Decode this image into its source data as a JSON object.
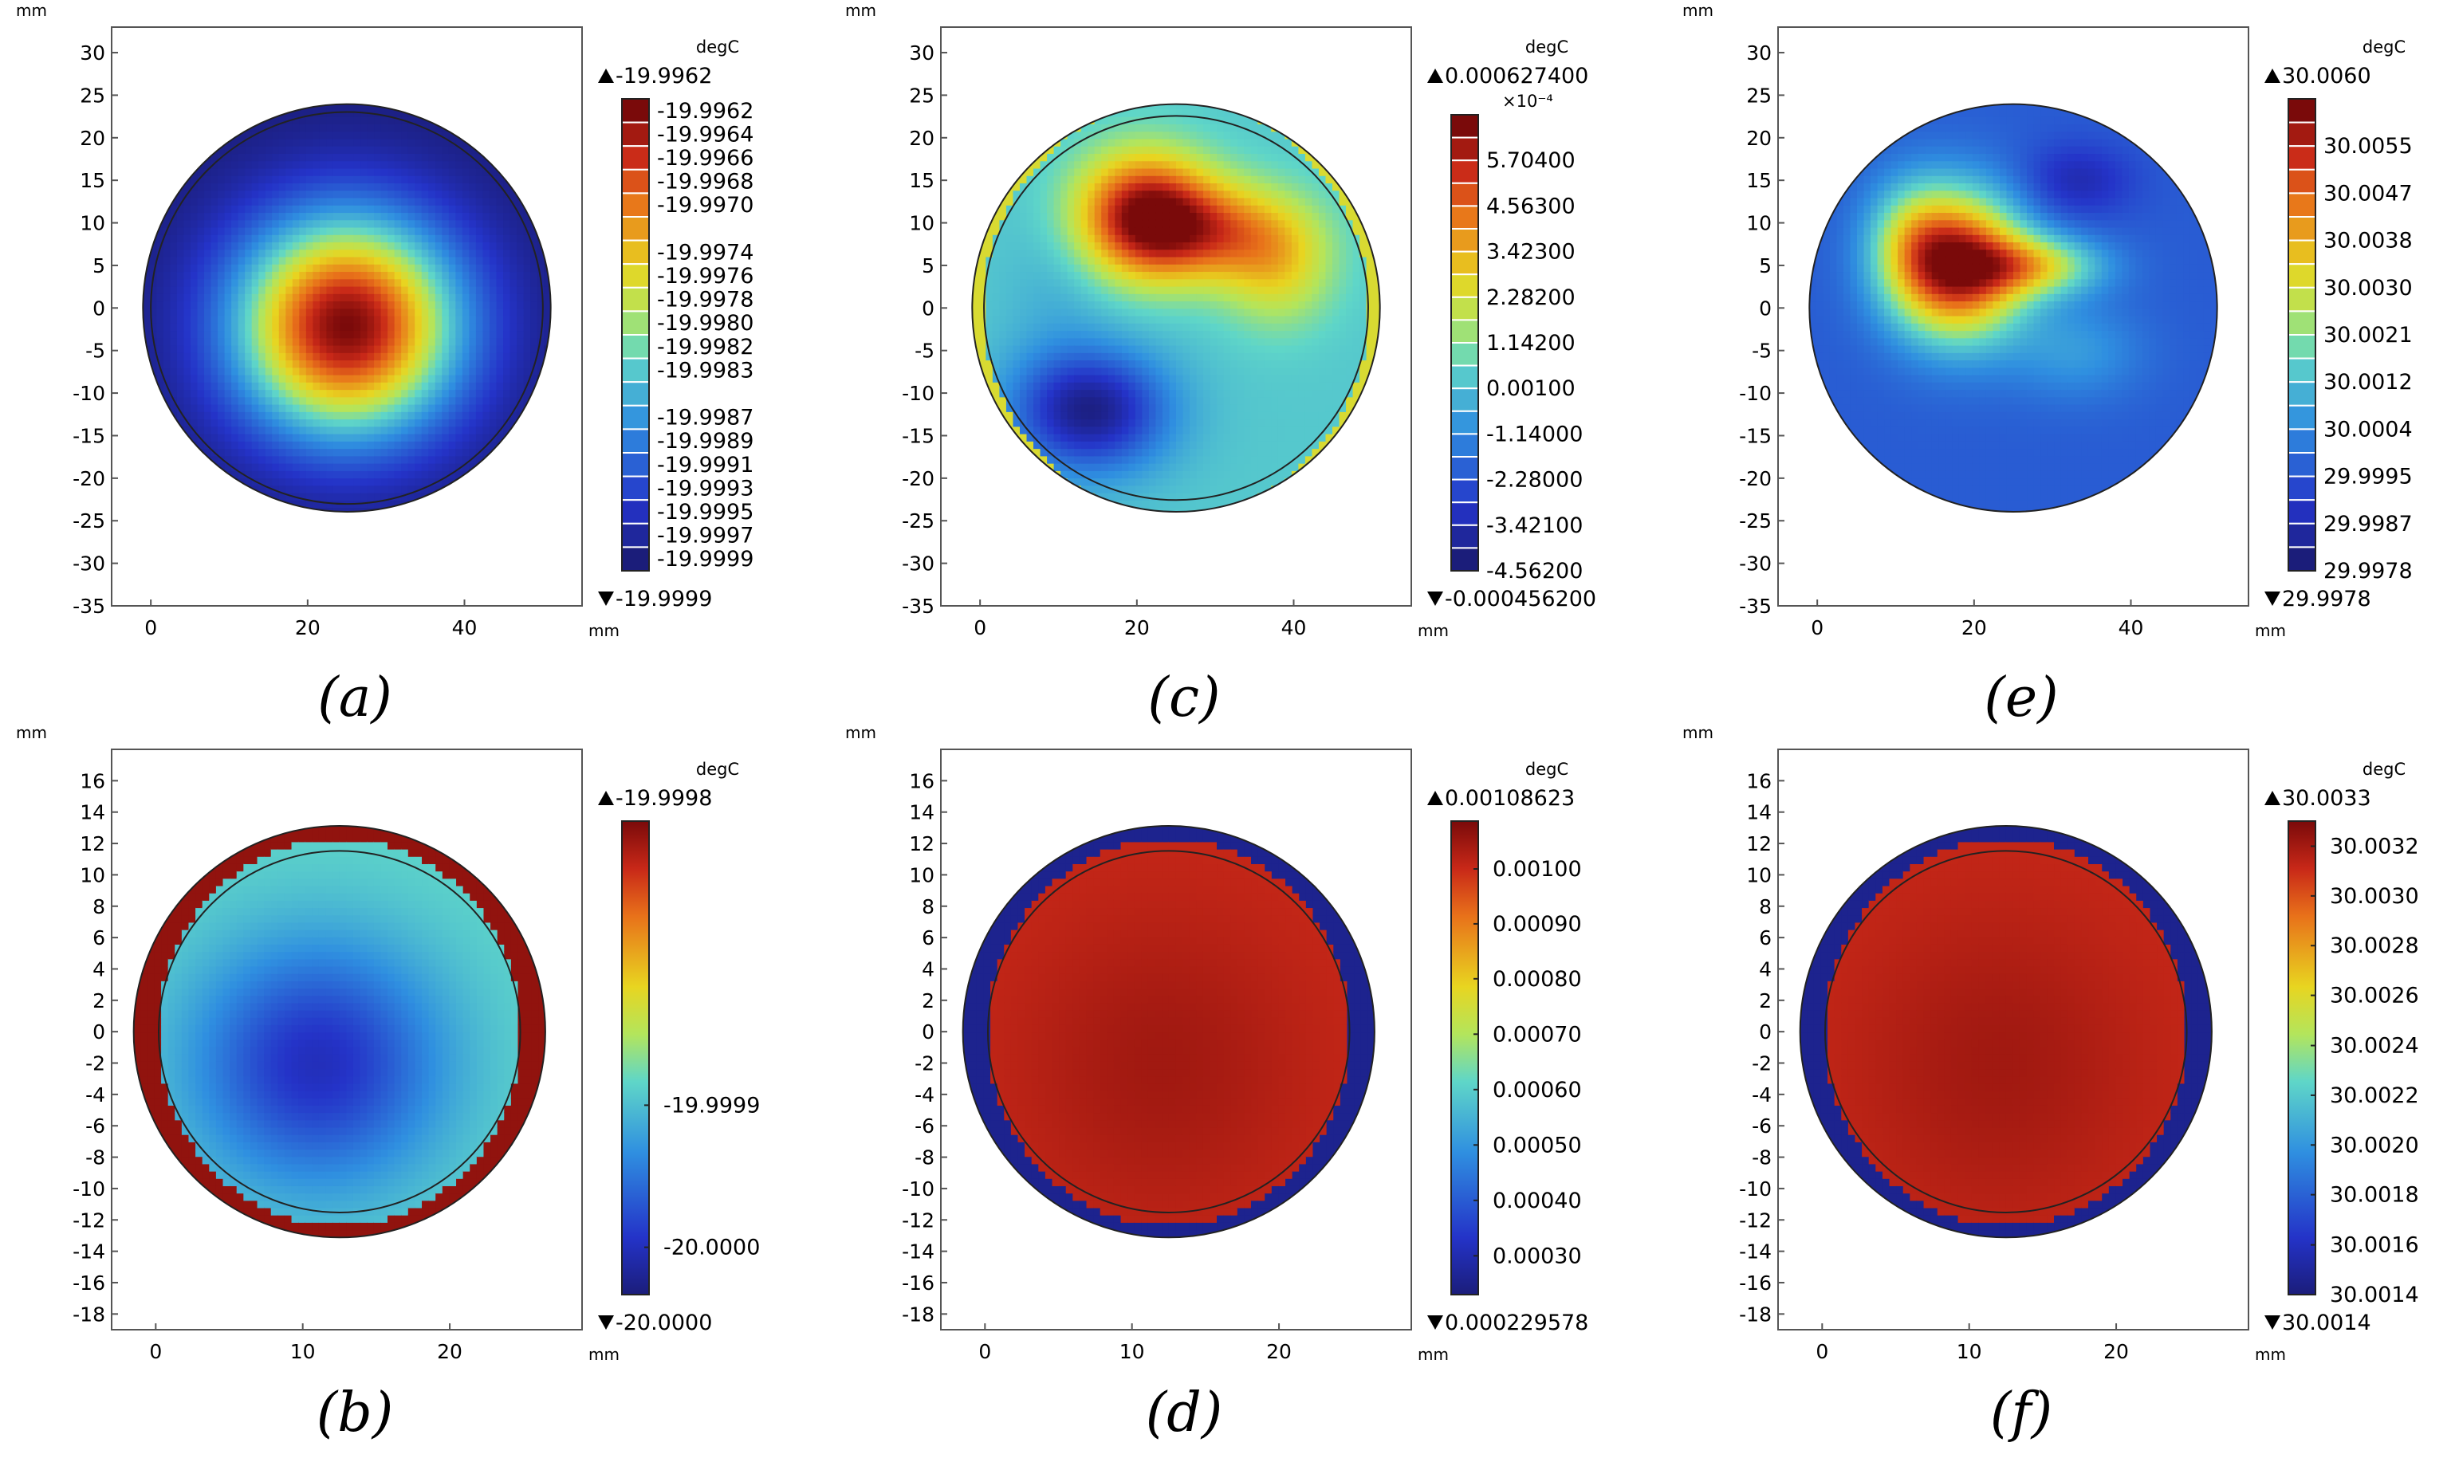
{
  "chart_data": [
    {
      "type": "heatmap",
      "caption": "(a)",
      "unit": "degC",
      "axis_unit": "mm",
      "x_range": [
        -5,
        55
      ],
      "y_range": [
        -35,
        33
      ],
      "x_ticks": [
        0,
        20,
        40
      ],
      "y_ticks": [
        30,
        25,
        20,
        15,
        10,
        5,
        0,
        -5,
        -10,
        -15,
        -20,
        -25,
        -30,
        -35
      ],
      "max_label": "-19.9962",
      "min_label": "-19.9999",
      "colorbar_style": "discrete",
      "colorbar_labels": [
        "-19.9962",
        "-19.9964",
        "-19.9966",
        "-19.9968",
        "-19.9970",
        "-19.9974",
        "-19.9976",
        "-19.9978",
        "-19.9980",
        "-19.9982",
        "-19.9983",
        "-19.9987",
        "-19.9989",
        "-19.9991",
        "-19.9993",
        "-19.9995",
        "-19.9997",
        "-19.9999"
      ],
      "colorbar_label_positions": [
        0,
        1,
        2,
        3,
        4,
        6,
        7,
        8,
        9,
        10,
        11,
        13,
        14,
        15,
        16,
        17,
        18,
        19
      ],
      "colorbar_levels": 20,
      "exponent": "",
      "circle": {
        "cx": 25,
        "cy": 0,
        "r": 26
      },
      "inner_ring_r": 25,
      "ring": {
        "inner_r": 26,
        "value": 0.02
      },
      "hotspots": [
        {
          "x": 25,
          "y": -2,
          "sx": 10,
          "sy": 9,
          "w": 1.0
        }
      ],
      "base": 0.0
    },
    {
      "type": "heatmap",
      "caption": "(b)",
      "unit": "degC",
      "axis_unit": "mm",
      "x_range": [
        -3,
        29
      ],
      "y_range": [
        -19,
        18
      ],
      "x_ticks": [
        0,
        10,
        20
      ],
      "y_ticks": [
        16,
        14,
        12,
        10,
        8,
        6,
        4,
        2,
        0,
        -2,
        -4,
        -6,
        -8,
        -10,
        -12,
        -14,
        -16,
        -18
      ],
      "max_label": "-19.9998",
      "min_label": "-20.0000",
      "colorbar_style": "continuous",
      "colorbar_labels": [
        "-19.9999",
        "-20.0000"
      ],
      "colorbar_label_values": [
        0.4,
        0.1
      ],
      "exponent": "",
      "circle": {
        "cx": 12.5,
        "cy": 0,
        "r": 14
      },
      "inner_ring_r": 12.3,
      "ring": {
        "inner_r": 12.3,
        "value": 0.97
      },
      "hotspots": [
        {
          "x": 11,
          "y": -2,
          "sx": 6,
          "sy": 5.5,
          "w": -0.35
        }
      ],
      "base": 0.45
    },
    {
      "type": "heatmap",
      "caption": "(c)",
      "unit": "degC",
      "axis_unit": "mm",
      "x_range": [
        -5,
        55
      ],
      "y_range": [
        -35,
        33
      ],
      "x_ticks": [
        0,
        20,
        40
      ],
      "y_ticks": [
        30,
        25,
        20,
        15,
        10,
        5,
        0,
        -5,
        -10,
        -15,
        -20,
        -25,
        -30,
        -35
      ],
      "max_label": "0.000627400",
      "min_label": "-0.000456200",
      "colorbar_style": "discrete",
      "colorbar_labels": [
        "5.70400",
        "4.56300",
        "3.42300",
        "2.28200",
        "1.14200",
        "0.00100",
        "-1.14000",
        "-2.28000",
        "-3.42100",
        "-4.56200"
      ],
      "colorbar_label_positions": [
        1.5,
        3.5,
        5.5,
        7.5,
        9.5,
        11.5,
        13.5,
        15.5,
        17.5,
        19.5
      ],
      "colorbar_levels": 20,
      "exponent": "×10⁻⁴",
      "circle": {
        "cx": 25,
        "cy": 0,
        "r": 26
      },
      "inner_ring_r": 24.5,
      "ring": {
        "inner_r": 24.5,
        "value": 0.62
      },
      "hotspots": [
        {
          "x": 21,
          "y": 11,
          "sx": 6,
          "sy": 5,
          "w": 0.55
        },
        {
          "x": 30,
          "y": 9,
          "sx": 7,
          "sy": 4,
          "w": 0.3
        },
        {
          "x": 38,
          "y": 5,
          "sx": 5,
          "sy": 5,
          "w": 0.2
        },
        {
          "x": 14,
          "y": -12,
          "sx": 7,
          "sy": 5,
          "w": -0.4
        },
        {
          "x": 10,
          "y": 2,
          "sx": 5,
          "sy": 7,
          "w": -0.05
        }
      ],
      "base": 0.42
    },
    {
      "type": "heatmap",
      "caption": "(d)",
      "unit": "degC",
      "axis_unit": "mm",
      "x_range": [
        -3,
        29
      ],
      "y_range": [
        -19,
        18
      ],
      "x_ticks": [
        0,
        10,
        20
      ],
      "y_ticks": [
        16,
        14,
        12,
        10,
        8,
        6,
        4,
        2,
        0,
        -2,
        -4,
        -6,
        -8,
        -10,
        -12,
        -14,
        -16,
        -18
      ],
      "max_label": "0.00108623",
      "min_label": "0.000229578",
      "colorbar_style": "continuous",
      "colorbar_labels": [
        "0.00100",
        "0.00090",
        "0.00080",
        "0.00070",
        "0.00060",
        "0.00050",
        "0.00040",
        "0.00030"
      ],
      "colorbar_label_values": [
        0.899,
        0.783,
        0.667,
        0.55,
        0.433,
        0.316,
        0.199,
        0.082
      ],
      "exponent": "",
      "circle": {
        "cx": 12.5,
        "cy": 0,
        "r": 14
      },
      "inner_ring_r": 12.3,
      "ring": {
        "inner_r": 12.3,
        "value": 0.03
      },
      "hotspots": [
        {
          "x": 12,
          "y": -2,
          "sx": 7,
          "sy": 7,
          "w": 0.05
        }
      ],
      "base": 0.9
    },
    {
      "type": "heatmap",
      "caption": "(e)",
      "unit": "degC",
      "axis_unit": "mm",
      "x_range": [
        -5,
        55
      ],
      "y_range": [
        -35,
        33
      ],
      "x_ticks": [
        0,
        20,
        40
      ],
      "y_ticks": [
        30,
        25,
        20,
        15,
        10,
        5,
        0,
        -5,
        -10,
        -15,
        -20,
        -25,
        -30,
        -35
      ],
      "max_label": "30.0060",
      "min_label": "29.9978",
      "colorbar_style": "discrete",
      "colorbar_labels": [
        "30.0055",
        "30.0047",
        "30.0038",
        "30.0030",
        "30.0021",
        "30.0012",
        "30.0004",
        "29.9995",
        "29.9987",
        "29.9978"
      ],
      "colorbar_label_positions": [
        1.5,
        3.5,
        5.5,
        7.5,
        9.5,
        11.5,
        13.5,
        15.5,
        17.5,
        19.5
      ],
      "colorbar_levels": 20,
      "exponent": "",
      "circle": {
        "cx": 25,
        "cy": 0,
        "r": 26
      },
      "inner_ring_r": 0,
      "ring": {
        "inner_r": 26,
        "value": 0.2
      },
      "hotspots": [
        {
          "x": 18,
          "y": 5,
          "sx": 6,
          "sy": 6,
          "w": 0.75
        },
        {
          "x": 28,
          "y": 5,
          "sx": 6,
          "sy": 2.5,
          "w": 0.35
        },
        {
          "x": 12,
          "y": 8,
          "sx": 4,
          "sy": 5,
          "w": 0.2
        },
        {
          "x": 33,
          "y": 15,
          "sx": 5,
          "sy": 3,
          "w": -0.12
        },
        {
          "x": 33,
          "y": -5,
          "sx": 6,
          "sy": 4,
          "w": 0.12
        }
      ],
      "base": 0.2
    },
    {
      "type": "heatmap",
      "caption": "(f)",
      "unit": "degC",
      "axis_unit": "mm",
      "x_range": [
        -3,
        29
      ],
      "y_range": [
        -19,
        18
      ],
      "x_ticks": [
        0,
        10,
        20
      ],
      "y_ticks": [
        16,
        14,
        12,
        10,
        8,
        6,
        4,
        2,
        0,
        -2,
        -4,
        -6,
        -8,
        -10,
        -12,
        -14,
        -16,
        -18
      ],
      "max_label": "30.0033",
      "min_label": "30.0014",
      "colorbar_style": "continuous",
      "colorbar_labels": [
        "30.0032",
        "30.0030",
        "30.0028",
        "30.0026",
        "30.0024",
        "30.0022",
        "30.0020",
        "30.0018",
        "30.0016",
        "30.0014"
      ],
      "colorbar_label_values": [
        0.947,
        0.842,
        0.737,
        0.632,
        0.526,
        0.421,
        0.316,
        0.211,
        0.105,
        0.0
      ],
      "exponent": "",
      "circle": {
        "cx": 12.5,
        "cy": 0,
        "r": 14
      },
      "inner_ring_r": 12.3,
      "ring": {
        "inner_r": 12.3,
        "value": 0.03
      },
      "hotspots": [
        {
          "x": 12,
          "y": -2,
          "sx": 7,
          "sy": 7,
          "w": 0.05
        }
      ],
      "base": 0.9
    }
  ]
}
